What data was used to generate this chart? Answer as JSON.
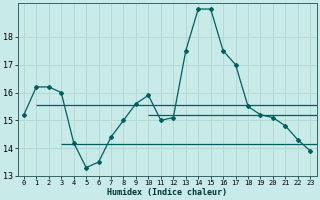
{
  "title": "",
  "xlabel": "Humidex (Indice chaleur)",
  "ylabel": "",
  "background_color": "#c8eae8",
  "grid_color": "#b0d8d0",
  "line_color": "#006060",
  "xlim": [
    -0.5,
    23.5
  ],
  "ylim": [
    13,
    19.2
  ],
  "yticks": [
    13,
    14,
    15,
    16,
    17,
    18
  ],
  "xticks": [
    0,
    1,
    2,
    3,
    4,
    5,
    6,
    7,
    8,
    9,
    10,
    11,
    12,
    13,
    14,
    15,
    16,
    17,
    18,
    19,
    20,
    21,
    22,
    23
  ],
  "xtick_labels": [
    "0",
    "1",
    "2",
    "3",
    "4",
    "5",
    "6",
    "7",
    "8",
    "9",
    "10",
    "11",
    "12",
    "13",
    "14",
    "15",
    "16",
    "17",
    "18",
    "19",
    "20",
    "21",
    "22",
    "23"
  ],
  "main_series": {
    "x": [
      0,
      1,
      2,
      3,
      4,
      5,
      6,
      7,
      8,
      9,
      10,
      11,
      12,
      13,
      14,
      15,
      16,
      17,
      18,
      19,
      20,
      21,
      22,
      23
    ],
    "y": [
      15.2,
      16.2,
      16.2,
      16.0,
      14.2,
      13.3,
      13.5,
      14.4,
      15.0,
      15.6,
      15.9,
      15.0,
      15.1,
      17.5,
      19.0,
      19.0,
      17.5,
      17.0,
      15.5,
      15.2,
      15.1,
      14.8,
      14.3,
      13.9
    ]
  },
  "hlines": [
    {
      "y": 15.55,
      "x_start": 1.0,
      "x_end": 23.5
    },
    {
      "y": 14.15,
      "x_start": 3.0,
      "x_end": 23.5
    },
    {
      "y": 15.2,
      "x_start": 10.0,
      "x_end": 23.5
    }
  ]
}
